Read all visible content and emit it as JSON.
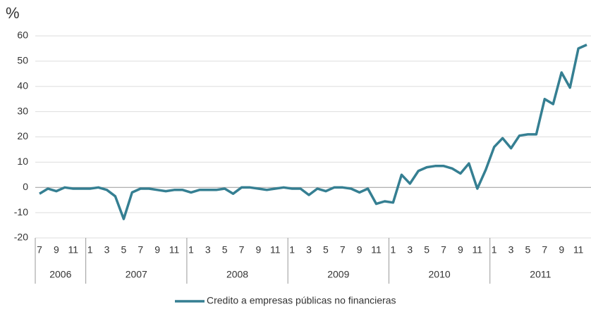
{
  "chart_data": {
    "type": "line",
    "y_label": "%",
    "categories": [
      "7",
      null,
      "9",
      null,
      "11",
      null,
      "1",
      null,
      "3",
      null,
      "5",
      null,
      "7",
      null,
      "9",
      null,
      "11",
      null,
      "1",
      null,
      "3",
      null,
      "5",
      null,
      "7",
      null,
      "9",
      null,
      "11",
      null,
      "1",
      null,
      "3",
      null,
      "5",
      null,
      "7",
      null,
      "9",
      null,
      "11",
      null,
      "1",
      null,
      "3",
      null,
      "5",
      null,
      "7",
      null,
      "9",
      null,
      "11",
      null,
      "1",
      null,
      "3",
      null,
      "5",
      null,
      "7",
      null,
      "9",
      null,
      "11",
      null
    ],
    "years": [
      "2006",
      "2007",
      "2008",
      "2009",
      "2010",
      "2011"
    ],
    "series": [
      {
        "name": "Credito a empresas públicas no financieras",
        "color": "#357f92",
        "values": [
          -2.5,
          -0.5,
          -1.5,
          0,
          -0.5,
          -0.5,
          -0.5,
          0,
          -1,
          -3.5,
          -12.5,
          -2,
          -0.5,
          -0.5,
          -1,
          -1.5,
          -1,
          -1,
          -2,
          -1,
          -1,
          -1,
          -0.5,
          -2.5,
          0,
          0,
          -0.5,
          -1,
          -0.5,
          0,
          -0.5,
          -0.5,
          -3,
          -0.5,
          -1.5,
          0,
          0,
          -0.5,
          -2,
          -0.5,
          -6.5,
          -5.5,
          -6,
          5,
          1.5,
          6.5,
          8,
          8.5,
          8.5,
          7.5,
          5.5,
          9.5,
          -0.5,
          7,
          16,
          19.5,
          15.5,
          20.5,
          21,
          21,
          35,
          33,
          45.5,
          39.5,
          55,
          56.5
        ]
      }
    ],
    "ylim": [
      -20,
      60
    ],
    "yticks": [
      -20,
      -10,
      0,
      10,
      20,
      30,
      40,
      50,
      60
    ],
    "grid": true
  }
}
